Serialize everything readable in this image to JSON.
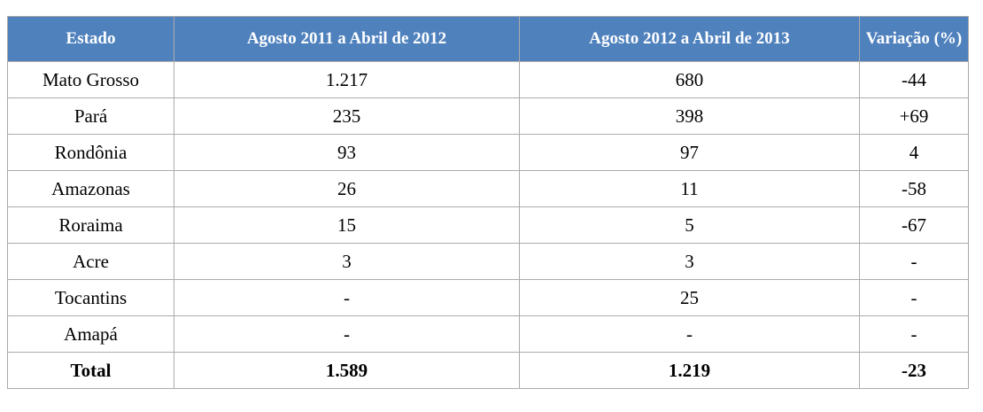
{
  "chart_data": {
    "type": "table",
    "title": "",
    "columns": [
      "Estado",
      "Agosto 2011 a Abril de 2012",
      "Agosto 2012 a Abril de 2013",
      "Variação (%)"
    ],
    "rows": [
      [
        "Mato Grosso",
        "1.217",
        "680",
        "-44"
      ],
      [
        "Pará",
        "235",
        "398",
        "+69"
      ],
      [
        "Rondônia",
        "93",
        "97",
        "4"
      ],
      [
        "Amazonas",
        "26",
        "11",
        "-58"
      ],
      [
        "Roraima",
        "15",
        "5",
        "-67"
      ],
      [
        "Acre",
        "3",
        "3",
        "-"
      ],
      [
        "Tocantins",
        "-",
        "25",
        "-"
      ],
      [
        "Amapá",
        "-",
        "-",
        "-"
      ],
      [
        "Total",
        "1.589",
        "1.219",
        "-23"
      ]
    ],
    "notes": "Last row (Total) is bold; '-' denotes no value; numbers use dot as thousands separator"
  },
  "table": {
    "columns": [
      "Estado",
      "Agosto 2011 a Abril de 2012",
      "Agosto 2012 a Abril de 2013",
      "Variação (%)"
    ],
    "rows": [
      [
        "Mato Grosso",
        "1.217",
        "680",
        "-44"
      ],
      [
        "Pará",
        "235",
        "398",
        "+69"
      ],
      [
        "Rondônia",
        "93",
        "97",
        "4"
      ],
      [
        "Amazonas",
        "26",
        "11",
        "-58"
      ],
      [
        "Roraima",
        "15",
        "5",
        "-67"
      ],
      [
        "Acre",
        "3",
        "3",
        "-"
      ],
      [
        "Tocantins",
        "-",
        "25",
        "-"
      ],
      [
        "Amapá",
        "-",
        "-",
        "-"
      ],
      [
        "Total",
        "1.589",
        "1.219",
        "-23"
      ]
    ]
  },
  "colors": {
    "header_bg": "#4f81bd",
    "header_text": "#ffffff",
    "border": "#ababab",
    "body_text": "#000000",
    "page_bg": "#ffffff"
  }
}
